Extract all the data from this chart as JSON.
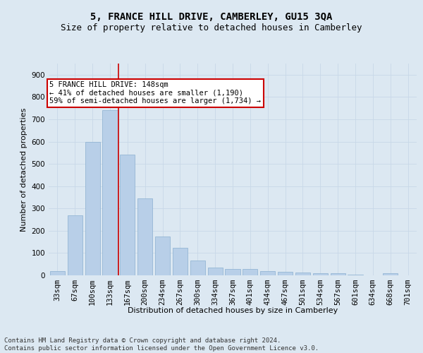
{
  "title_line1": "5, FRANCE HILL DRIVE, CAMBERLEY, GU15 3QA",
  "title_line2": "Size of property relative to detached houses in Camberley",
  "xlabel": "Distribution of detached houses by size in Camberley",
  "ylabel": "Number of detached properties",
  "categories": [
    "33sqm",
    "67sqm",
    "100sqm",
    "133sqm",
    "167sqm",
    "200sqm",
    "234sqm",
    "267sqm",
    "300sqm",
    "334sqm",
    "367sqm",
    "401sqm",
    "434sqm",
    "467sqm",
    "501sqm",
    "534sqm",
    "567sqm",
    "601sqm",
    "634sqm",
    "668sqm",
    "701sqm"
  ],
  "values": [
    20,
    270,
    600,
    740,
    540,
    345,
    175,
    125,
    65,
    35,
    30,
    28,
    18,
    15,
    12,
    8,
    8,
    3,
    0,
    8,
    0
  ],
  "bar_color": "#b8cfe8",
  "bar_edge_color": "#8aafd0",
  "bar_width": 0.85,
  "vline_x_index": 3.5,
  "vline_color": "#cc0000",
  "ylim": [
    0,
    950
  ],
  "yticks": [
    0,
    100,
    200,
    300,
    400,
    500,
    600,
    700,
    800,
    900
  ],
  "grid_color": "#c8d8e8",
  "background_color": "#dce8f2",
  "annotation_text": "5 FRANCE HILL DRIVE: 148sqm\n← 41% of detached houses are smaller (1,190)\n59% of semi-detached houses are larger (1,734) →",
  "annotation_box_facecolor": "#ffffff",
  "annotation_box_edgecolor": "#cc0000",
  "footer_text": "Contains HM Land Registry data © Crown copyright and database right 2024.\nContains public sector information licensed under the Open Government Licence v3.0.",
  "title_fontsize": 10,
  "subtitle_fontsize": 9,
  "axis_label_fontsize": 8,
  "tick_fontsize": 7.5,
  "annotation_fontsize": 7.5,
  "footer_fontsize": 6.5
}
